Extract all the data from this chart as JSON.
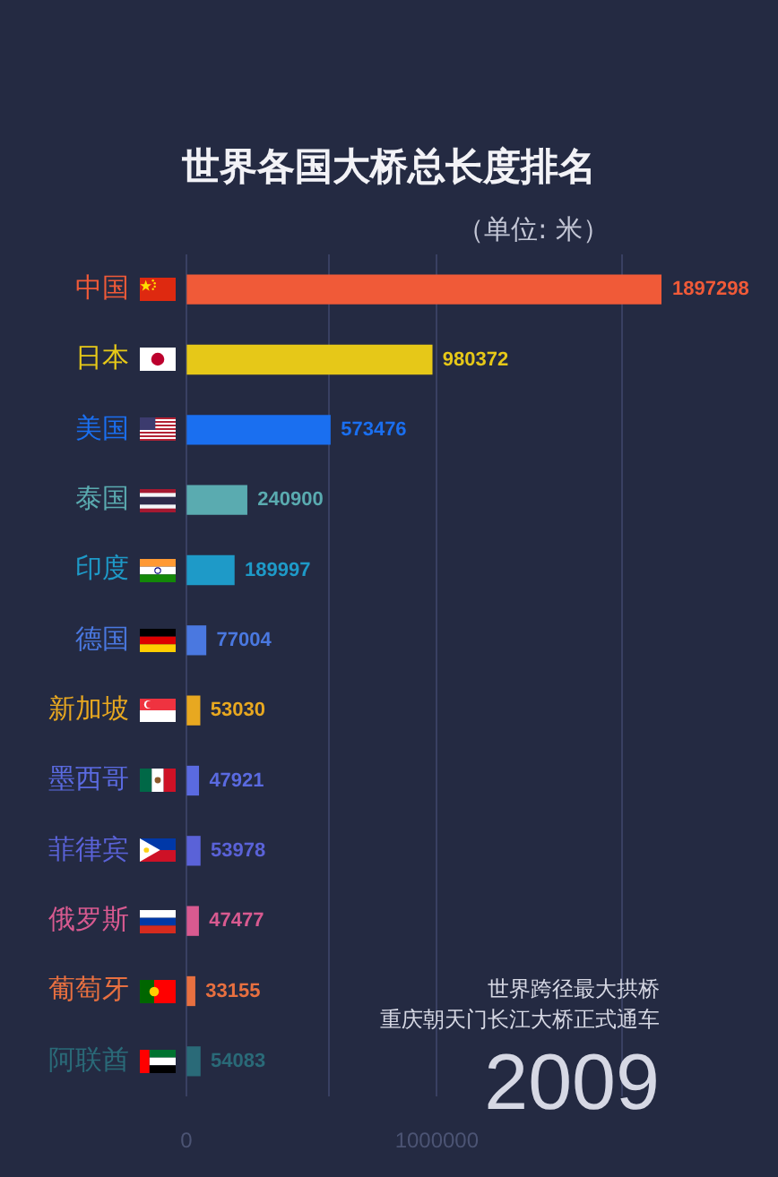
{
  "chart_data": {
    "type": "bar",
    "orientation": "horizontal",
    "title": "世界各国大桥总长度排名",
    "subtitle": "（单位: 米）",
    "categories": [
      "中国",
      "日本",
      "美国",
      "泰国",
      "印度",
      "德国",
      "新加坡",
      "墨西哥",
      "菲律宾",
      "俄罗斯",
      "葡萄牙",
      "阿联酋"
    ],
    "values": [
      1897298,
      980372,
      573476,
      240900,
      189997,
      77004,
      53030,
      47921,
      53978,
      47477,
      33155,
      54083
    ],
    "colors": [
      "#f05a38",
      "#e6c818",
      "#1a6ff0",
      "#5aabb0",
      "#1e9ac8",
      "#4a78e0",
      "#e8a820",
      "#5a6ae0",
      "#5a62d8",
      "#d85a90",
      "#e87040",
      "#2a6a78"
    ],
    "xlim": [
      0,
      1897298
    ],
    "xticks": [
      0,
      {
        "value": 570000,
        "label": null
      },
      1000000,
      {
        "value": 1740000,
        "label": null
      }
    ],
    "grid": "x",
    "data_labels": true,
    "annotations": [
      "世界跨径最大拱桥",
      "重庆朝天门长江大桥正式通车",
      "2009"
    ]
  }
}
